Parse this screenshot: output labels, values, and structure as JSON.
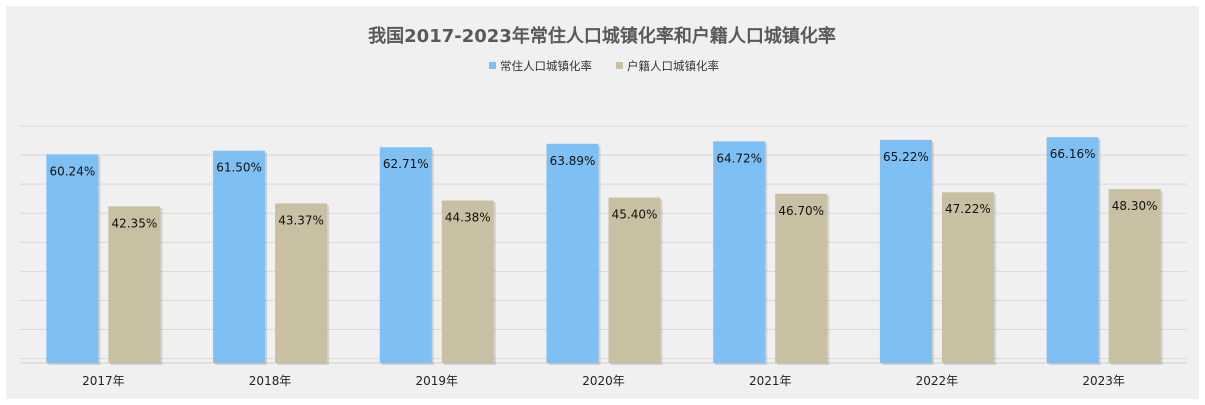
{
  "chart_data": {
    "type": "bar",
    "title": "我国2017-2023年常住人口城镇化率和户籍人口城镇化率",
    "categories": [
      "2017年",
      "2018年",
      "2019年",
      "2020年",
      "2021年",
      "2022年",
      "2023年"
    ],
    "series": [
      {
        "name": "常住人口城镇化率",
        "color": "#7fc0f4",
        "values": [
          60.24,
          61.5,
          62.71,
          63.89,
          64.72,
          65.22,
          66.16
        ],
        "labels": [
          "60.24%",
          "61.50%",
          "62.71%",
          "63.89%",
          "64.72%",
          "65.22%",
          "66.16%"
        ]
      },
      {
        "name": "户籍人口城镇化率",
        "color": "#c9c0a4",
        "values": [
          42.35,
          43.37,
          44.38,
          45.4,
          46.7,
          47.22,
          48.3
        ],
        "labels": [
          "42.35%",
          "43.37%",
          "44.38%",
          "45.40%",
          "46.70%",
          "47.22%",
          "48.30%"
        ]
      }
    ],
    "xlabel": "",
    "ylabel": "",
    "ylim": [
      -11.5,
      70
    ],
    "y_tick_step": 10,
    "y_axis_labels_shown": false,
    "grid": true,
    "legend_position": "top-center",
    "data_labels_position": "inside-top"
  }
}
